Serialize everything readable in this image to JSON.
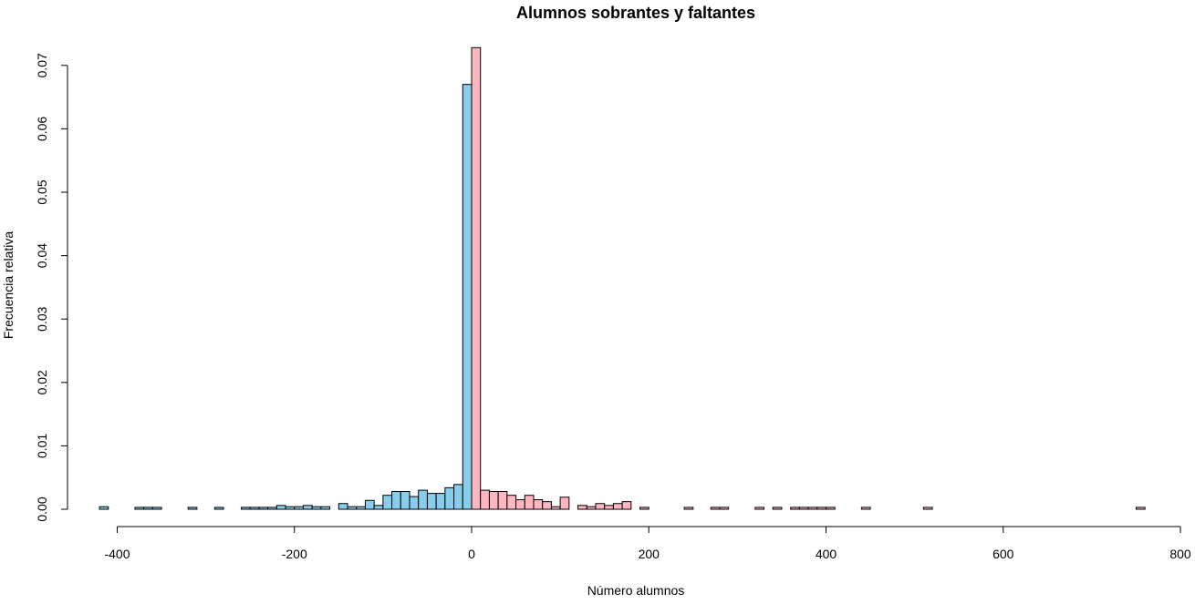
{
  "chart_data": {
    "type": "bar",
    "title": "Alumnos sobrantes y faltantes",
    "xlabel": "Número alumnos",
    "ylabel": "Frecuencia relativa",
    "xlim": [
      -420,
      800
    ],
    "ylim": [
      0,
      0.073
    ],
    "xticks": [
      -400,
      -200,
      0,
      200,
      400,
      600,
      800
    ],
    "xtick_labels": [
      "-400",
      "-200",
      "0",
      "200",
      "400",
      "600",
      "800"
    ],
    "yticks": [
      0,
      0.01,
      0.02,
      0.03,
      0.04,
      0.05,
      0.06,
      0.07
    ],
    "ytick_labels": [
      "0.00",
      "0.01",
      "0.02",
      "0.03",
      "0.04",
      "0.05",
      "0.06",
      "0.07"
    ],
    "grid": false,
    "legend": "none",
    "bin_width": 10,
    "colors": {
      "negative": "#87ceeb",
      "positive": "#ffb6c1",
      "edge": "#000000"
    },
    "series": [
      {
        "color": "#87ceeb",
        "bins": [
          [
            -420,
            0.0004
          ],
          [
            -380,
            0.0003
          ],
          [
            -370,
            0.0003
          ],
          [
            -360,
            0.0003
          ],
          [
            -320,
            0.0003
          ],
          [
            -290,
            0.0003
          ],
          [
            -260,
            0.0003
          ],
          [
            -250,
            0.0003
          ],
          [
            -240,
            0.0003
          ],
          [
            -230,
            0.0003
          ],
          [
            -220,
            0.0006
          ],
          [
            -210,
            0.0004
          ],
          [
            -200,
            0.0004
          ],
          [
            -190,
            0.0006
          ],
          [
            -180,
            0.0004
          ],
          [
            -170,
            0.0004
          ],
          [
            -150,
            0.0009
          ],
          [
            -140,
            0.0004
          ],
          [
            -130,
            0.0004
          ],
          [
            -120,
            0.0014
          ],
          [
            -110,
            0.0006
          ],
          [
            -100,
            0.0022
          ],
          [
            -90,
            0.0028
          ],
          [
            -80,
            0.0028
          ],
          [
            -70,
            0.002
          ],
          [
            -60,
            0.003
          ],
          [
            -50,
            0.0025
          ],
          [
            -40,
            0.0025
          ],
          [
            -30,
            0.0034
          ],
          [
            -20,
            0.0039
          ],
          [
            -10,
            0.067
          ]
        ]
      },
      {
        "color": "#ffb6c1",
        "bins": [
          [
            0,
            0.0728
          ],
          [
            10,
            0.003
          ],
          [
            20,
            0.0028
          ],
          [
            30,
            0.0028
          ],
          [
            40,
            0.0022
          ],
          [
            50,
            0.0015
          ],
          [
            60,
            0.0022
          ],
          [
            70,
            0.0015
          ],
          [
            80,
            0.0012
          ],
          [
            90,
            0.0004
          ],
          [
            100,
            0.0019
          ],
          [
            120,
            0.0006
          ],
          [
            130,
            0.0004
          ],
          [
            140,
            0.0009
          ],
          [
            150,
            0.0006
          ],
          [
            160,
            0.0009
          ],
          [
            170,
            0.0012
          ],
          [
            190,
            0.0003
          ],
          [
            240,
            0.0003
          ],
          [
            270,
            0.0003
          ],
          [
            280,
            0.0003
          ],
          [
            320,
            0.0003
          ],
          [
            340,
            0.0003
          ],
          [
            360,
            0.0003
          ],
          [
            370,
            0.0003
          ],
          [
            380,
            0.0003
          ],
          [
            390,
            0.0003
          ],
          [
            400,
            0.0003
          ],
          [
            440,
            0.0003
          ],
          [
            510,
            0.0003
          ],
          [
            750,
            0.0003
          ]
        ]
      }
    ]
  }
}
